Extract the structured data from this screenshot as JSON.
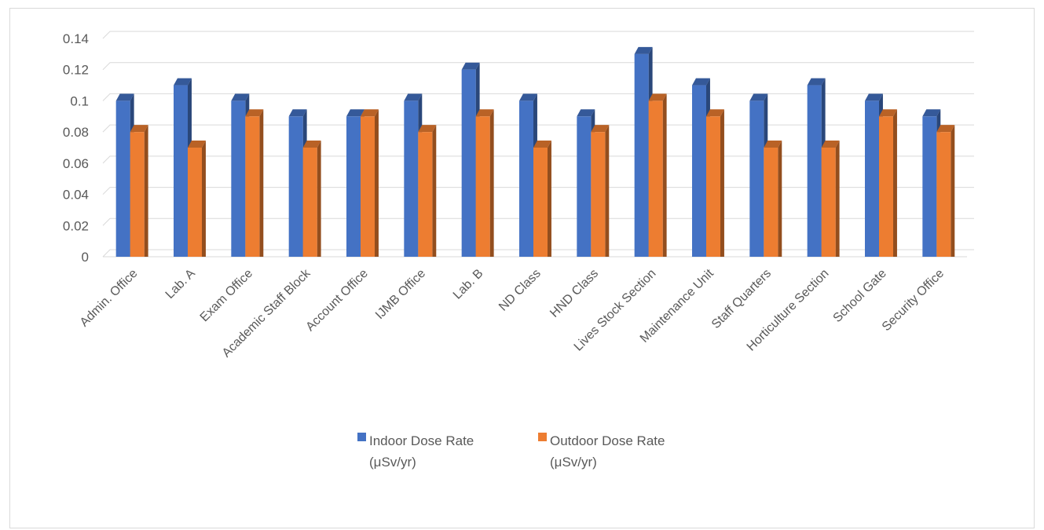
{
  "chart_data": {
    "type": "bar",
    "categories": [
      "Admin. Office",
      "Lab. A",
      "Exam Office",
      "Academic Staff Block",
      "Account Office",
      "IJMB Office",
      "Lab. B",
      "ND Class",
      "HND Class",
      "Lives Stock Section",
      "Maintenance Unit",
      "Staff Quarters",
      "Horticulture Section",
      "School Gate",
      "Security Office"
    ],
    "series": [
      {
        "name": "Indoor Dose Rate (μSv/yr)",
        "legend_lines": [
          "Indoor Dose Rate",
          "(μSv/yr)"
        ],
        "color": "#4472c4",
        "values": [
          0.1,
          0.11,
          0.1,
          0.09,
          0.09,
          0.1,
          0.12,
          0.1,
          0.09,
          0.13,
          0.11,
          0.1,
          0.11,
          0.1,
          0.09
        ]
      },
      {
        "name": "Outdoor Dose Rate (μSv/yr)",
        "legend_lines": [
          "Outdoor Dose Rate",
          "(μSv/yr)"
        ],
        "color": "#ed7d31",
        "values": [
          0.08,
          0.07,
          0.09,
          0.07,
          0.09,
          0.08,
          0.09,
          0.07,
          0.08,
          0.1,
          0.09,
          0.07,
          0.07,
          0.09,
          0.08
        ]
      }
    ],
    "y_ticks": [
      "0",
      "0.02",
      "0.04",
      "0.06",
      "0.08",
      "0.1",
      "0.12",
      "0.14"
    ],
    "ylim": [
      0,
      0.14
    ],
    "grid": true,
    "legend_position": "bottom",
    "style": "3d-clustered-column"
  }
}
